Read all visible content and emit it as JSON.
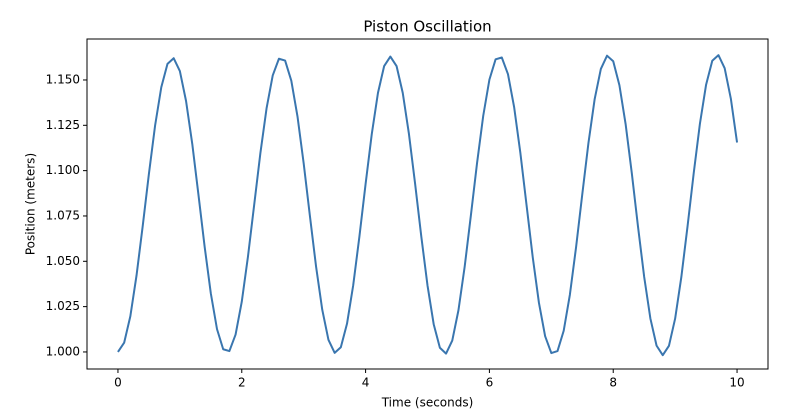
{
  "chart_data": {
    "type": "line",
    "title": "Piston Oscillation",
    "xlabel": "Time (seconds)",
    "ylabel": "Position (meters)",
    "color": "#3a76af",
    "x": [
      0,
      0.1,
      0.2,
      0.3,
      0.4,
      0.5,
      0.6,
      0.7,
      0.8,
      0.9,
      1,
      1.1,
      1.2,
      1.3,
      1.4,
      1.5,
      1.6,
      1.7,
      1.8,
      1.9,
      2,
      2.1,
      2.2,
      2.3,
      2.4,
      2.5,
      2.6,
      2.7,
      2.8,
      2.9,
      3,
      3.1,
      3.2,
      3.3,
      3.4,
      3.5,
      3.6,
      3.7,
      3.8,
      3.9,
      4,
      4.1,
      4.2,
      4.3,
      4.4,
      4.5,
      4.6,
      4.7,
      4.8,
      4.9,
      5,
      5.1,
      5.2,
      5.3,
      5.4,
      5.5,
      5.6,
      5.7,
      5.8,
      5.9,
      6,
      6.1,
      6.2,
      6.3,
      6.4,
      6.5,
      6.6,
      6.7,
      6.8,
      6.9,
      7,
      7.1,
      7.2,
      7.3,
      7.4,
      7.5,
      7.6,
      7.7,
      7.8,
      7.9,
      8,
      8.1,
      8.2,
      8.3,
      8.4,
      8.5,
      8.6,
      8.7,
      8.8,
      8.9,
      9,
      9.1,
      9.2,
      9.3,
      9.4,
      9.5,
      9.6,
      9.7,
      9.8,
      9.9,
      10
    ],
    "values": [
      1.0,
      1.0051,
      1.0197,
      1.0422,
      1.0695,
      1.0982,
      1.1249,
      1.146,
      1.1589,
      1.162,
      1.1549,
      1.1384,
      1.1148,
      1.0868,
      1.0581,
      1.0323,
      1.0126,
      1.0015,
      1.0005,
      1.0096,
      1.0277,
      1.0526,
      1.081,
      1.1095,
      1.1343,
      1.1525,
      1.1617,
      1.1607,
      1.1496,
      1.1299,
      1.104,
      1.0752,
      1.0471,
      1.0233,
      1.0067,
      0.9995,
      1.0026,
      1.0156,
      1.0368,
      1.0636,
      1.0926,
      1.1202,
      1.1429,
      1.1577,
      1.1629,
      1.1577,
      1.1429,
      1.1203,
      1.0927,
      1.0636,
      1.0367,
      1.0153,
      1.0023,
      0.9991,
      1.0063,
      1.023,
      1.0469,
      1.0751,
      1.1041,
      1.1302,
      1.1502,
      1.1614,
      1.1624,
      1.1532,
      1.1349,
      1.1098,
      1.081,
      1.0522,
      1.0271,
      1.0087,
      0.9994,
      1.0005,
      1.0117,
      1.0316,
      1.0578,
      1.0869,
      1.1153,
      1.1394,
      1.1561,
      1.1634,
      1.1603,
      1.1471,
      1.1257,
      1.0986,
      1.0692,
      1.0414,
      1.0185,
      1.0035,
      0.9982,
      1.0034,
      1.0184,
      1.0413,
      1.0692,
      1.0986,
      1.1258,
      1.1474,
      1.1606,
      1.1637,
      1.1565,
      1.1397,
      1.1155
    ],
    "xlim": [
      -0.5,
      10.5
    ],
    "ylim": [
      0.9906,
      1.1726
    ],
    "xticks": [
      0,
      2,
      4,
      6,
      8,
      10
    ],
    "yticks": [
      {
        "value": 1.0,
        "label": "1.000"
      },
      {
        "value": 1.025,
        "label": "1.025"
      },
      {
        "value": 1.05,
        "label": "1.050"
      },
      {
        "value": 1.075,
        "label": "1.075"
      },
      {
        "value": 1.1,
        "label": "1.100"
      },
      {
        "value": 1.125,
        "label": "1.125"
      },
      {
        "value": 1.15,
        "label": "1.150"
      }
    ],
    "grid": false
  }
}
